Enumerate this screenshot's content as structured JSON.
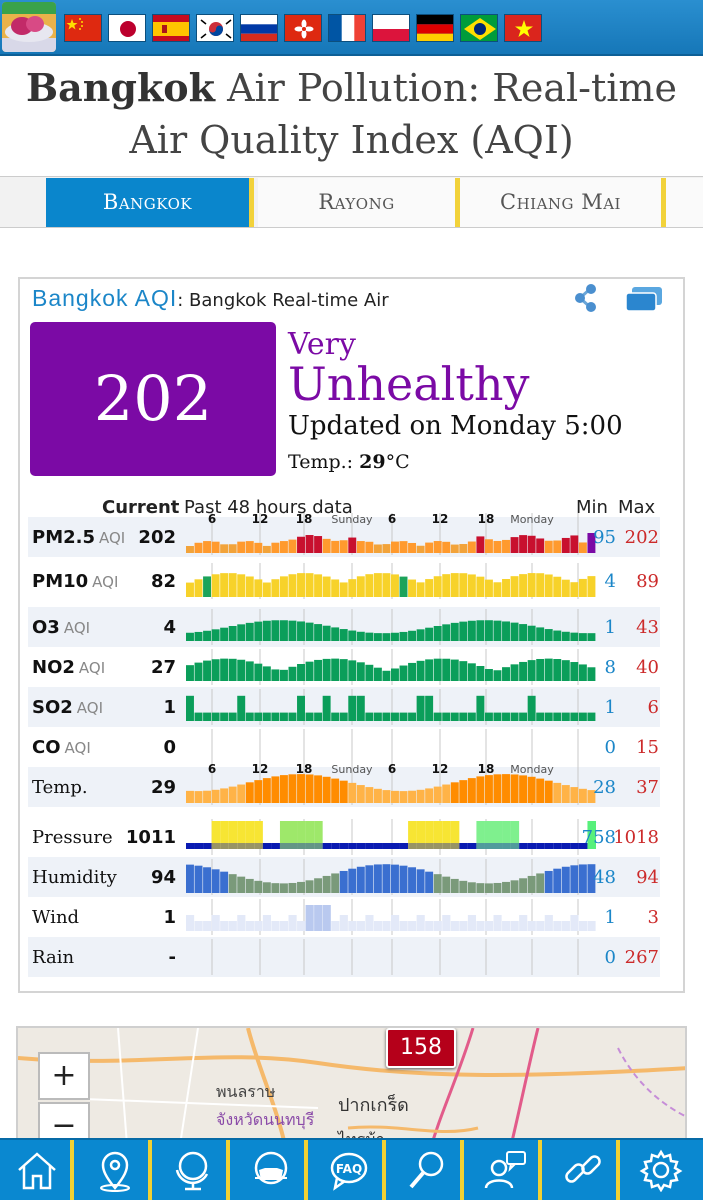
{
  "title": {
    "city": "Bangkok",
    "rest": " Air Pollution: Real-time Air Quality Index (AQI)"
  },
  "tabs": [
    {
      "label": "Bangkok",
      "active": true
    },
    {
      "label": "Rayong",
      "active": false
    },
    {
      "label": "Chiang Mai",
      "active": false
    }
  ],
  "flags": [
    "china",
    "japan",
    "spain",
    "korea",
    "russia",
    "hong-kong",
    "france",
    "poland",
    "germany",
    "brazil",
    "vietnam"
  ],
  "card": {
    "city": "Bangkok AQI",
    "colon": ": ",
    "station": "Bangkok Real-time Air",
    "aqi": "202",
    "aqi_color": "#7b0aa5",
    "level_line1": "Very",
    "level_line2": "Unhealthy",
    "updated": "Updated on Monday 5:00",
    "temp_label": "Temp.:",
    "temp_value": "29",
    "temp_unit": "°C"
  },
  "table_header": {
    "current": "Current",
    "past": "Past 48 hours data",
    "min": "Min",
    "max": "Max"
  },
  "rows": [
    {
      "label": "PM2.5",
      "sub": "AQI",
      "current": "202",
      "min": "95",
      "max": "202",
      "band": true
    },
    {
      "label": "PM10",
      "sub": "AQI",
      "current": "82",
      "min": "4",
      "max": "89",
      "band": false
    },
    {
      "label": "O3",
      "sub": "AQI",
      "current": "4",
      "min": "1",
      "max": "43",
      "band": true
    },
    {
      "label": "NO2",
      "sub": "AQI",
      "current": "27",
      "min": "8",
      "max": "40",
      "band": false
    },
    {
      "label": "SO2",
      "sub": "AQI",
      "current": "1",
      "min": "1",
      "max": "6",
      "band": true
    },
    {
      "label": "CO",
      "sub": "AQI",
      "current": "0",
      "min": "0",
      "max": "15",
      "band": false
    },
    {
      "label": "Temp.",
      "sub": "",
      "current": "29",
      "min": "28",
      "max": "37",
      "band": true
    },
    {
      "label": "Pressure",
      "sub": "",
      "current": "1011",
      "min": "758",
      "max": "1018",
      "band": false
    },
    {
      "label": "Humidity",
      "sub": "",
      "current": "94",
      "min": "48",
      "max": "94",
      "band": true
    },
    {
      "label": "Wind",
      "sub": "",
      "current": "1",
      "min": "1",
      "max": "3",
      "band": false
    },
    {
      "label": "Rain",
      "sub": "",
      "current": "-",
      "min": "0",
      "max": "267",
      "band": true
    }
  ],
  "axis_labels": [
    "6",
    "12",
    "18",
    "Sunday",
    "6",
    "12",
    "18",
    "Monday"
  ],
  "map": {
    "zoom_in": "+",
    "zoom_out": "−",
    "place1": "พนลราษ",
    "place2": "จังหวัดนนทบุรี",
    "place3": "ปากเกร็ด",
    "place4": "ไทรม้า",
    "marker_value": "158"
  },
  "bottom_nav": [
    "home",
    "location",
    "globe",
    "mask",
    "faq",
    "search",
    "support",
    "link",
    "settings"
  ],
  "nav_faq_label": "FAQ"
}
